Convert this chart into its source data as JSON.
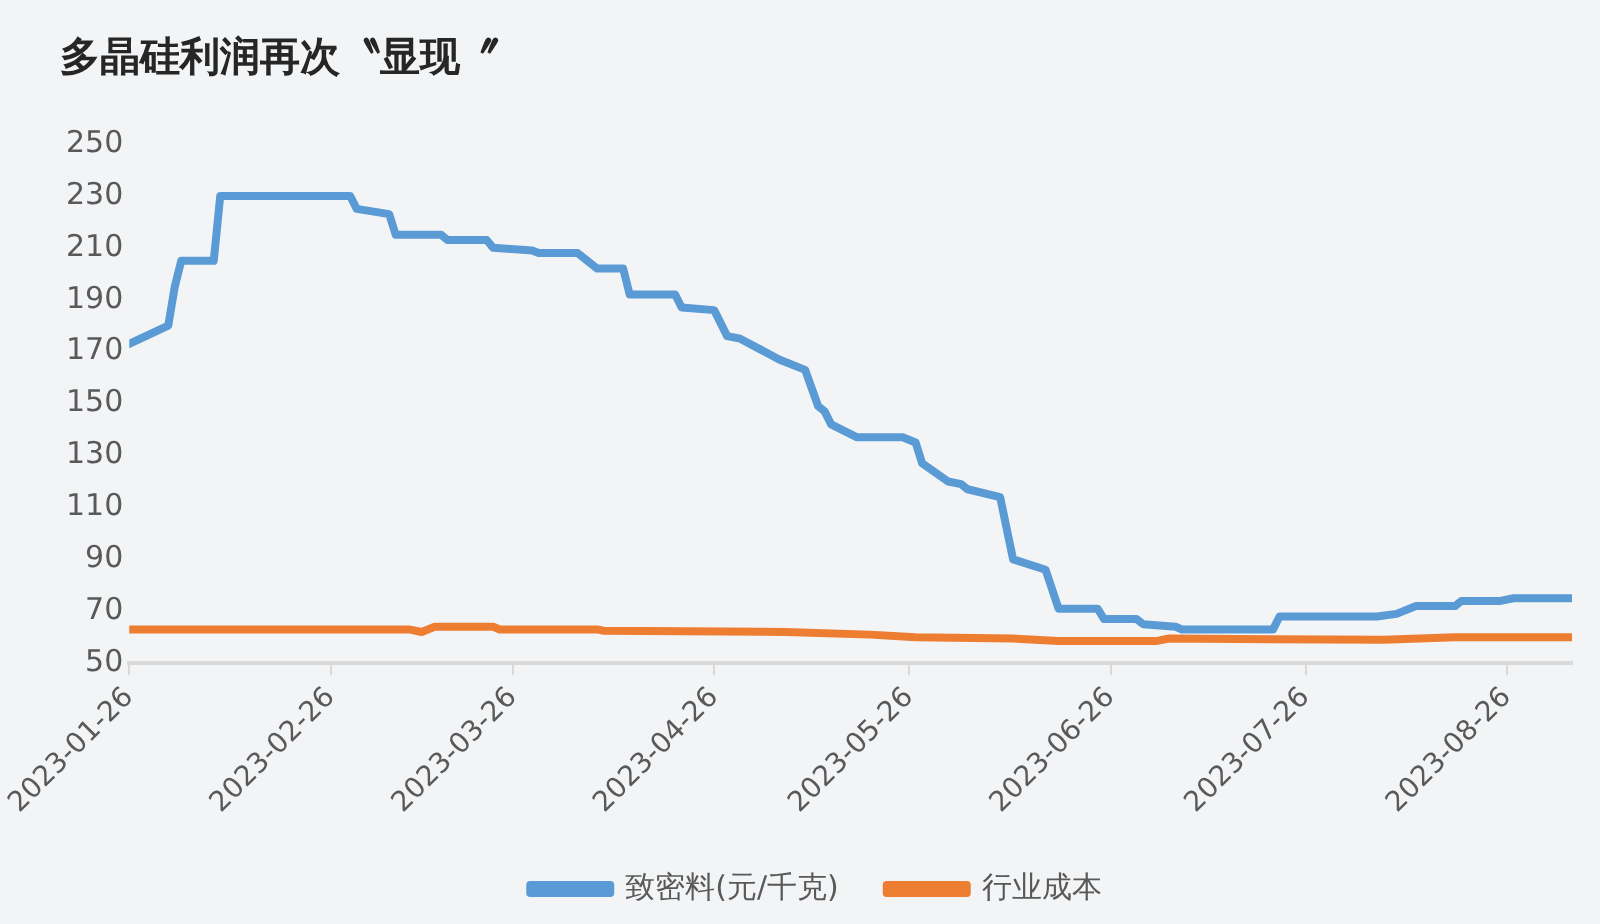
{
  "chart_data": {
    "type": "line",
    "title": "多晶硅利润再次〝显现〞",
    "xlim": [
      "2023-01-26",
      "2023-09-05"
    ],
    "xticks": [
      "2023-01-26",
      "2023-02-26",
      "2023-03-26",
      "2023-04-26",
      "2023-05-26",
      "2023-06-26",
      "2023-07-26",
      "2023-08-26"
    ],
    "ylim": [
      50,
      250
    ],
    "yticks": [
      50,
      70,
      90,
      110,
      130,
      150,
      170,
      190,
      210,
      230,
      250
    ],
    "grid": false,
    "legend": "bottom",
    "marker": "none",
    "line_style": "solid",
    "series": [
      {
        "name": "致密料(元/千克)",
        "color": "#5b9bd5",
        "x": [
          "2023-01-26",
          "2023-02-01",
          "2023-02-02",
          "2023-02-03",
          "2023-02-08",
          "2023-02-09",
          "2023-03-01",
          "2023-03-02",
          "2023-03-07",
          "2023-03-08",
          "2023-03-15",
          "2023-03-16",
          "2023-03-22",
          "2023-03-23",
          "2023-03-29",
          "2023-03-30",
          "2023-04-05",
          "2023-04-08",
          "2023-04-12",
          "2023-04-13",
          "2023-04-20",
          "2023-04-21",
          "2023-04-26",
          "2023-04-28",
          "2023-04-30",
          "2023-05-06",
          "2023-05-10",
          "2023-05-12",
          "2023-05-13",
          "2023-05-14",
          "2023-05-18",
          "2023-05-25",
          "2023-05-27",
          "2023-05-28",
          "2023-06-01",
          "2023-06-03",
          "2023-06-04",
          "2023-06-09",
          "2023-06-11",
          "2023-06-16",
          "2023-06-18",
          "2023-06-24",
          "2023-06-25",
          "2023-06-30",
          "2023-07-01",
          "2023-07-06",
          "2023-07-07",
          "2023-07-21",
          "2023-07-22",
          "2023-08-06",
          "2023-08-09",
          "2023-08-12",
          "2023-08-18",
          "2023-08-19",
          "2023-08-25",
          "2023-08-27",
          "2023-09-05"
        ],
        "values": [
          173,
          180,
          195,
          205,
          205,
          230,
          230,
          225,
          223,
          215,
          215,
          213,
          213,
          210,
          209,
          208,
          208,
          202,
          202,
          192,
          192,
          187,
          186,
          176,
          175,
          167,
          163,
          149,
          147,
          142,
          137,
          137,
          135,
          127,
          120,
          119,
          117,
          114,
          90,
          86,
          71,
          71,
          67,
          67,
          65,
          64,
          63,
          63,
          68,
          68,
          69,
          72,
          72,
          74,
          74,
          75,
          75
        ]
      },
      {
        "name": "行业成本",
        "color": "#ed7d31",
        "x": [
          "2023-01-26",
          "2023-03-10",
          "2023-03-12",
          "2023-03-14",
          "2023-03-23",
          "2023-03-24",
          "2023-04-08",
          "2023-04-09",
          "2023-05-07",
          "2023-05-20",
          "2023-05-27",
          "2023-06-11",
          "2023-06-18",
          "2023-07-03",
          "2023-07-05",
          "2023-08-07",
          "2023-08-18",
          "2023-09-05"
        ],
        "values": [
          63,
          63,
          62,
          64,
          64,
          63,
          63,
          62.5,
          62,
          61,
          60,
          59.5,
          58.5,
          58.5,
          59.5,
          59,
          60,
          60
        ]
      }
    ]
  }
}
